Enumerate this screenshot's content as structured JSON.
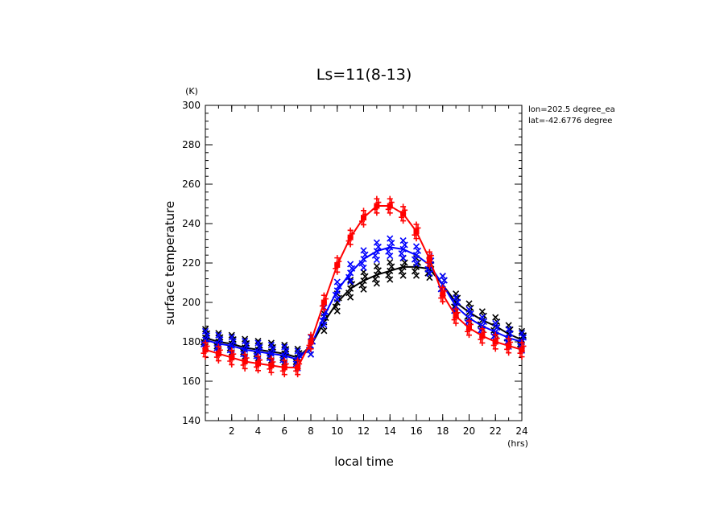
{
  "chart_data": {
    "type": "line",
    "title": "Ls=11(8-13)",
    "xlabel": "local time",
    "ylabel": "surface temperature",
    "xunit": "(hrs)",
    "yunit": "(K)",
    "xlim": [
      0,
      24
    ],
    "ylim": [
      140,
      300
    ],
    "xticks": [
      2,
      4,
      6,
      8,
      10,
      12,
      14,
      16,
      18,
      20,
      22,
      24
    ],
    "yticks": [
      140,
      160,
      180,
      200,
      220,
      240,
      260,
      280,
      300
    ],
    "annotations": [
      "lon=202.5 degree_ea",
      "lat=-42.6776 degree"
    ],
    "grid": false,
    "x": [
      0,
      1,
      2,
      3,
      4,
      5,
      6,
      7,
      8,
      9,
      10,
      11,
      12,
      13,
      14,
      15,
      16,
      17,
      18,
      19,
      20,
      21,
      22,
      23,
      24
    ],
    "series": [
      {
        "color": "#000000",
        "marker": "x",
        "values": [
          182,
          180,
          179,
          177,
          176,
          175,
          174,
          172,
          178,
          190,
          200,
          207,
          211,
          214,
          216,
          218,
          218,
          217,
          209,
          200,
          195,
          191,
          188,
          184,
          181
        ]
      },
      {
        "color": "#0000ff",
        "marker": "x",
        "values": [
          181,
          179,
          178,
          176,
          175,
          174,
          173,
          171,
          178,
          193,
          206,
          215,
          222,
          226,
          228,
          227,
          224,
          219,
          209,
          198,
          192,
          188,
          185,
          182,
          180
        ]
      },
      {
        "color": "#ff0000",
        "marker": "+",
        "values": [
          176,
          174,
          172,
          170,
          169,
          168,
          167,
          167,
          180,
          200,
          219,
          233,
          243,
          249,
          249,
          245,
          236,
          222,
          204,
          193,
          187,
          183,
          180,
          178,
          176
        ]
      }
    ]
  }
}
